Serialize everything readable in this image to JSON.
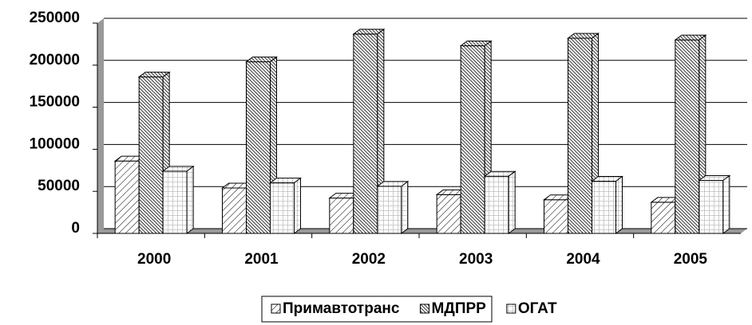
{
  "chart_data": {
    "type": "bar3d",
    "categories": [
      "2000",
      "2001",
      "2002",
      "2003",
      "2004",
      "2005"
    ],
    "series": [
      {
        "name": "Примавтотранс",
        "color": "#000000",
        "pattern": "sparse-diagonal",
        "values": [
          86000,
          54000,
          42000,
          46000,
          40000,
          37000
        ]
      },
      {
        "name": "МДПРР",
        "color": "#000000",
        "pattern": "dense-diagonal",
        "values": [
          186000,
          204000,
          237000,
          223000,
          232000,
          230000
        ]
      },
      {
        "name": "ОГАТ",
        "color": "#000000",
        "pattern": "dotted-grid",
        "values": [
          74000,
          60000,
          56000,
          68000,
          62000,
          63000
        ]
      }
    ],
    "ylim": [
      0,
      250000
    ],
    "yticks": [
      0,
      50000,
      100000,
      150000,
      200000,
      250000
    ],
    "grid": true,
    "legend": "bottom"
  }
}
